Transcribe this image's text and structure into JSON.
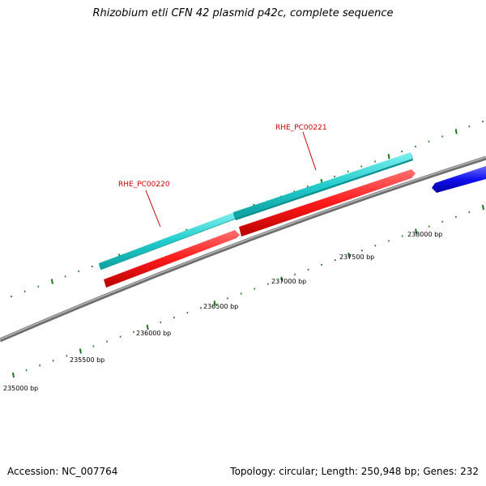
{
  "title": "Rhizobium etli CFN 42 plasmid p42c, complete sequence",
  "footer": {
    "accession": "Accession: NC_007764",
    "summary": "Topology: circular; Length: 250,948 bp; Genes: 232"
  },
  "colors": {
    "backbone": "#8a8a8a",
    "tick": "#1a7a1a",
    "forward_cds": "#2cd3d3",
    "reverse_cds": "#ff1a1a",
    "other_feature": "#1010ee",
    "gene_label": "#cc0000"
  },
  "scale": {
    "labels": [
      "235000 bp",
      "235500 bp",
      "236000 bp",
      "236500 bp",
      "237000 bp",
      "237500 bp",
      "238000 bp"
    ]
  },
  "features": [
    {
      "name": "RHE_PC00220",
      "label": "RHE_PC00220"
    },
    {
      "name": "RHE_PC00221",
      "label": "RHE_PC00221"
    }
  ]
}
